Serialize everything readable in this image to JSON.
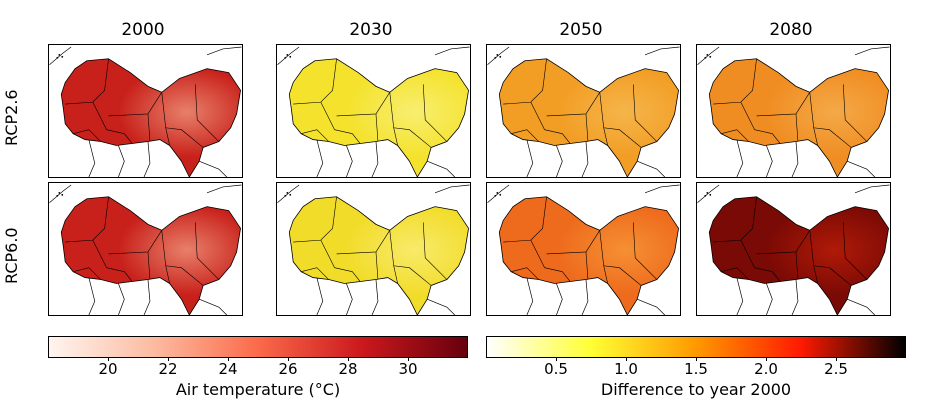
{
  "columns": [
    "2000",
    "2030",
    "2050",
    "2080"
  ],
  "rows": [
    "RCP2.6",
    "RCP6.0"
  ],
  "colorbars": {
    "absolute": {
      "label": "Air temperature (°C)",
      "ticks": [
        "20",
        "22",
        "24",
        "26",
        "28",
        "30"
      ],
      "range": [
        18,
        32
      ],
      "colors": [
        "#fff5f0",
        "#fcbba1",
        "#fb6a4a",
        "#cb181d",
        "#67000d"
      ]
    },
    "difference": {
      "label": "Difference to year 2000",
      "ticks": [
        "0.5",
        "1.0",
        "1.5",
        "2.0",
        "2.5"
      ],
      "range": [
        0,
        3
      ],
      "colors": [
        "#ffffff",
        "#ffff33",
        "#ff9900",
        "#ff1a00",
        "#000000"
      ]
    }
  },
  "panel_fills": {
    "RCP2.6": {
      "2000": "#c8201a",
      "2030": "#f4e22c",
      "2050": "#f29d24",
      "2080": "#f08d22"
    },
    "RCP6.0": {
      "2000": "#c8201a",
      "2030": "#f2dc2a",
      "2050": "#ee6a1c",
      "2080": "#7a0a05"
    }
  },
  "panel_highlights": {
    "RCP2.6": {
      "2000": "#e8806a",
      "2030": "#f8ee70",
      "2050": "#f5b54a",
      "2080": "#f4a948"
    },
    "RCP6.0": {
      "2000": "#e8806a",
      "2030": "#f8ea6a",
      "2050": "#f59034",
      "2080": "#b01a08"
    }
  }
}
